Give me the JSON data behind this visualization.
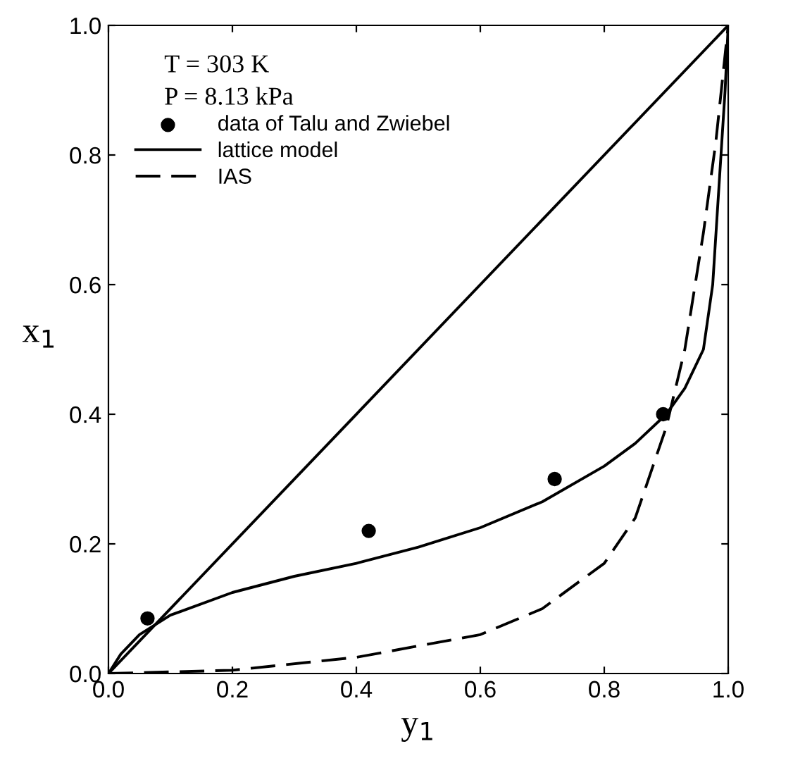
{
  "chart_data": {
    "type": "line",
    "xlabel": "y$_{1}$",
    "ylabel": "x$_{1}$",
    "annotations": [
      "T = 303 K",
      "P = 8.13 kPa"
    ],
    "xlim": [
      0,
      1
    ],
    "ylim": [
      0,
      1
    ],
    "xticks": [
      {
        "value": 0,
        "label": "0.0"
      },
      {
        "value": 0.2,
        "label": "0.2"
      },
      {
        "value": 0.4,
        "label": "0.4"
      },
      {
        "value": 0.6,
        "label": "0.6"
      },
      {
        "value": 0.8,
        "label": "0.8"
      },
      {
        "value": 1,
        "label": "1.0"
      }
    ],
    "yticks": [
      {
        "value": 0,
        "label": "0.0"
      },
      {
        "value": 0.2,
        "label": "0.2"
      },
      {
        "value": 0.4,
        "label": "0.4"
      },
      {
        "value": 0.6,
        "label": "0.6"
      },
      {
        "value": 0.8,
        "label": "0.8"
      },
      {
        "value": 1,
        "label": "1.0"
      }
    ],
    "grid": false,
    "legend": "top left",
    "series": [
      {
        "color": "#000000",
        "line_style": "solid",
        "marker": "none",
        "x": [
          0,
          1
        ],
        "values": [
          0,
          1
        ]
      },
      {
        "type": "scatter",
        "name": "data of Talu and Zwiebel",
        "color": "#000000",
        "marker": "circle",
        "x": [
          0.063,
          0.42,
          0.72,
          0.895
        ],
        "values": [
          0.085,
          0.22,
          0.3,
          0.4
        ]
      },
      {
        "name": "lattice model",
        "color": "#000000",
        "line_style": "solid",
        "marker": "none",
        "x": [
          0,
          0.02,
          0.05,
          0.1,
          0.2,
          0.3,
          0.4,
          0.5,
          0.6,
          0.7,
          0.8,
          0.85,
          0.9,
          0.93,
          0.96,
          0.975,
          0.985,
          0.995,
          1.0
        ],
        "values": [
          0,
          0.03,
          0.06,
          0.09,
          0.125,
          0.15,
          0.17,
          0.195,
          0.225,
          0.265,
          0.32,
          0.355,
          0.4,
          0.44,
          0.5,
          0.6,
          0.75,
          0.9,
          1.0
        ]
      },
      {
        "name": "IAS",
        "color": "#000000",
        "line_style": "dashed",
        "marker": "none",
        "x": [
          0,
          0.2,
          0.4,
          0.6,
          0.7,
          0.8,
          0.85,
          0.9,
          0.93,
          0.96,
          0.98,
          1.0
        ],
        "values": [
          0,
          0.005,
          0.025,
          0.06,
          0.1,
          0.17,
          0.24,
          0.38,
          0.5,
          0.68,
          0.82,
          1.0
        ]
      }
    ]
  }
}
